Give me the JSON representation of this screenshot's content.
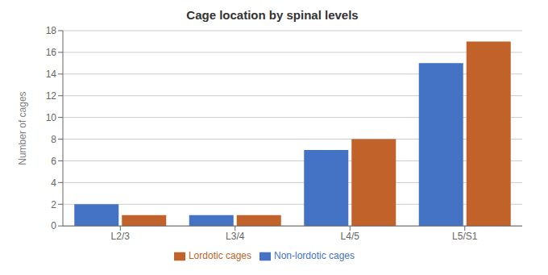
{
  "chart_data": {
    "type": "bar",
    "title": "Cage location by spinal levels",
    "categories": [
      "L2/3",
      "L3/4",
      "L4/5",
      "L5/S1"
    ],
    "series": [
      {
        "name": "Non-lordotic cages",
        "color": "#4472C4",
        "values": [
          2,
          1,
          7,
          15
        ]
      },
      {
        "name": "Lordotic cages",
        "color": "#C0622A",
        "values": [
          1,
          1,
          8,
          17
        ]
      }
    ],
    "ylabel": "Number of cages",
    "ylim": [
      0,
      18
    ],
    "yticks": [
      0,
      2,
      4,
      6,
      8,
      10,
      12,
      14,
      16,
      18
    ],
    "grid": true,
    "legend": "bottom"
  }
}
